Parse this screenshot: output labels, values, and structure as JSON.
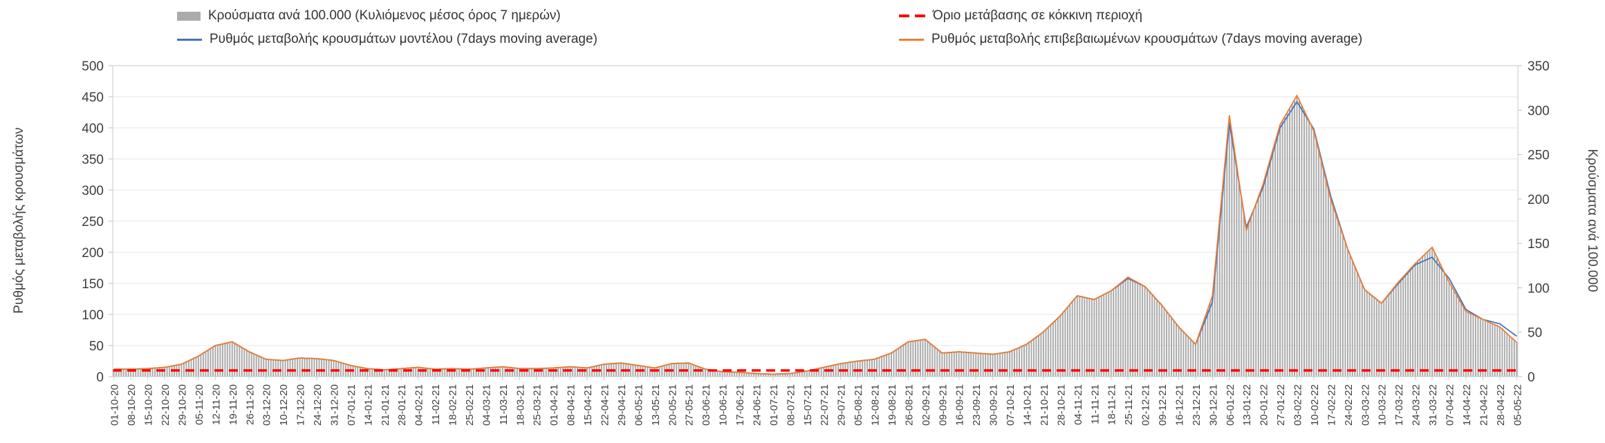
{
  "legend": {
    "items": [
      {
        "id": "bars",
        "label": "Κρούσματα ανά 100.000 (Κυλιόμενος μέσος όρος 7 ημερών)",
        "swatch": "bar",
        "color": "#ababab"
      },
      {
        "id": "threshold",
        "label": "Όριο μετάβασης σε κόκκινη περιοχή",
        "swatch": "dashed-line",
        "color": "#ff0000"
      },
      {
        "id": "model",
        "label": "Ρυθμός μεταβολής κρουσμάτων μοντέλου (7days moving average)",
        "swatch": "line",
        "color": "#4472c4"
      },
      {
        "id": "confirmed",
        "label": "Ρυθμός μεταβολής επιβεβαιωμένων κρουσμάτων (7days moving average)",
        "swatch": "line",
        "color": "#ed7d31"
      }
    ]
  },
  "axes": {
    "left_label": "Ρυθμός μεταβολής κρουσμάτων",
    "right_label": "Κρούσματα ανά 100.000",
    "left_ticks": [
      0,
      50,
      100,
      150,
      200,
      250,
      300,
      350,
      400,
      450,
      500
    ],
    "right_ticks": [
      0,
      50,
      100,
      150,
      200,
      250,
      300,
      350
    ]
  },
  "chart_data": {
    "type": "bar",
    "subtype": "combo-bar-line",
    "title": "",
    "xlabel": "",
    "ylabel_left": "Ρυθμός μεταβολής κρουσμάτων",
    "ylabel_right": "Κρούσματα ανά 100.000",
    "left_axis": {
      "min": 0,
      "max": 500,
      "step": 50
    },
    "right_axis": {
      "min": 0,
      "max": 350,
      "step": 50
    },
    "grid": true,
    "legend_position": "top",
    "threshold": {
      "label": "Όριο μετάβασης σε κόκκινη περιοχή",
      "value": 10,
      "axis": "left",
      "color": "#ff0000",
      "style": "dashed"
    },
    "x_labels": [
      "01-10-20",
      "08-10-20",
      "15-10-20",
      "22-10-20",
      "29-10-20",
      "05-11-20",
      "12-11-20",
      "19-11-20",
      "26-11-20",
      "03-12-20",
      "10-12-20",
      "17-12-20",
      "24-12-20",
      "31-12-20",
      "07-01-21",
      "14-01-21",
      "21-01-21",
      "28-01-21",
      "04-02-21",
      "11-02-21",
      "18-02-21",
      "25-02-21",
      "04-03-21",
      "11-03-21",
      "18-03-21",
      "25-03-21",
      "01-04-21",
      "08-04-21",
      "15-04-21",
      "22-04-21",
      "29-04-21",
      "06-05-21",
      "13-05-21",
      "20-05-21",
      "27-05-21",
      "03-06-21",
      "10-06-21",
      "17-06-21",
      "24-06-21",
      "01-07-21",
      "08-07-21",
      "15-07-21",
      "22-07-21",
      "29-07-21",
      "05-08-21",
      "12-08-21",
      "19-08-21",
      "26-08-21",
      "02-09-21",
      "09-09-21",
      "16-09-21",
      "23-09-21",
      "30-09-21",
      "07-10-21",
      "14-10-21",
      "21-10-21",
      "28-10-21",
      "04-11-21",
      "11-11-21",
      "18-11-21",
      "25-11-21",
      "02-12-21",
      "09-12-21",
      "16-12-21",
      "23-12-21",
      "30-12-21",
      "06-01-22",
      "13-01-22",
      "20-01-22",
      "27-01-22",
      "03-02-22",
      "10-02-22",
      "17-02-22",
      "24-02-22",
      "03-03-22",
      "10-03-22",
      "17-03-22",
      "24-03-22",
      "31-03-22",
      "07-04-22",
      "14-04-22",
      "21-04-22",
      "28-04-22",
      "05-05-22"
    ],
    "series": [
      {
        "id": "bars",
        "name": "Κρούσματα ανά 100.000 (Κυλιόμενος μέσος όρος 7 ημερών)",
        "type": "bar",
        "axis": "right",
        "color": "#ababab",
        "values": [
          8,
          8,
          9,
          11,
          14,
          23,
          35,
          39,
          28,
          20,
          18,
          21,
          20,
          18,
          13,
          9,
          8,
          9,
          11,
          8,
          9,
          8,
          10,
          11,
          9,
          9,
          10,
          11,
          10,
          14,
          15,
          13,
          10,
          15,
          15,
          8,
          6,
          5,
          4,
          3,
          4,
          6,
          11,
          15,
          18,
          20,
          27,
          39,
          42,
          27,
          28,
          27,
          25,
          28,
          36,
          50,
          69,
          91,
          87,
          97,
          112,
          102,
          81,
          56,
          36,
          91,
          294,
          165,
          217,
          284,
          316,
          277,
          200,
          144,
          98,
          83,
          106,
          127,
          146,
          106,
          74,
          64,
          56,
          39
        ]
      },
      {
        "id": "model",
        "name": "Ρυθμός μεταβολής κρουσμάτων μοντέλου (7days moving average)",
        "type": "line",
        "axis": "left",
        "color": "#4472c4",
        "values": [
          12,
          12,
          13,
          15,
          20,
          33,
          50,
          56,
          40,
          28,
          26,
          30,
          29,
          26,
          18,
          13,
          11,
          13,
          15,
          12,
          13,
          12,
          14,
          16,
          13,
          13,
          14,
          16,
          14,
          20,
          22,
          18,
          14,
          21,
          22,
          12,
          8,
          7,
          5,
          4,
          5,
          9,
          15,
          21,
          25,
          28,
          38,
          56,
          60,
          38,
          40,
          38,
          36,
          40,
          52,
          72,
          98,
          130,
          124,
          138,
          158,
          145,
          115,
          80,
          52,
          120,
          408,
          240,
          305,
          400,
          442,
          398,
          290,
          205,
          140,
          118,
          150,
          180,
          192,
          158,
          108,
          92,
          85,
          65
        ]
      },
      {
        "id": "confirmed",
        "name": "Ρυθμός μεταβολής επιβεβαιωμένων κρουσμάτων (7days moving average)",
        "type": "line",
        "axis": "left",
        "color": "#ed7d31",
        "values": [
          12,
          12,
          13,
          15,
          20,
          33,
          50,
          56,
          40,
          28,
          26,
          30,
          29,
          26,
          18,
          13,
          11,
          13,
          15,
          12,
          13,
          12,
          14,
          16,
          13,
          13,
          14,
          16,
          14,
          20,
          22,
          18,
          14,
          21,
          22,
          12,
          8,
          7,
          5,
          4,
          5,
          9,
          15,
          21,
          25,
          28,
          38,
          56,
          60,
          38,
          40,
          38,
          36,
          40,
          52,
          72,
          98,
          130,
          124,
          138,
          160,
          145,
          115,
          80,
          52,
          130,
          420,
          235,
          310,
          405,
          452,
          395,
          285,
          205,
          140,
          118,
          152,
          182,
          208,
          152,
          105,
          92,
          80,
          55
        ]
      }
    ]
  }
}
